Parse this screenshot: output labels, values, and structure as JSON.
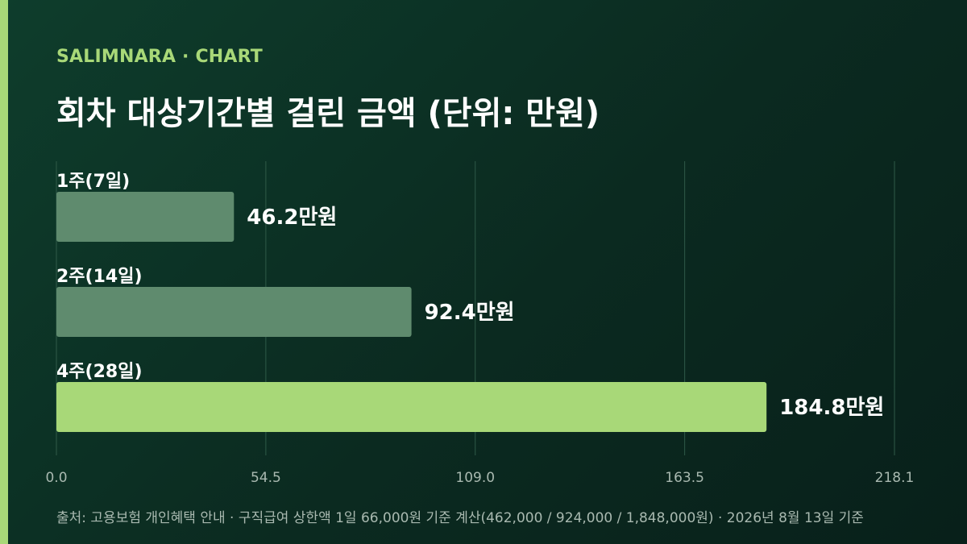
{
  "header": {
    "eyebrow": "SALIMNARA · CHART",
    "title": "회차 대상기간별 걸린 금액 (단위: 만원)"
  },
  "footer": {
    "source": "출처: 고용보험 개인혜택 안내 · 구직급여 상한액 1일 66,000원 기준 계산(462,000 / 924,000 / 1,848,000원) · 2026년 8월 13일 기준"
  },
  "colors": {
    "accent": "#a8d878",
    "bar_default": "#5f8b6e",
    "bar_highlight": "#a8d878",
    "grid": "#2f5a48",
    "tick_text": "#a9b9b0"
  },
  "chart_data": {
    "type": "bar",
    "orientation": "horizontal",
    "title": "회차 대상기간별 걸린 금액 (단위: 만원)",
    "categories": [
      "1주(7일)",
      "2주(14일)",
      "4주(28일)"
    ],
    "values": [
      46.2,
      92.4,
      184.8
    ],
    "value_labels": [
      "46.2만원",
      "92.4만원",
      "184.8만원"
    ],
    "highlight_index": 2,
    "xlim": [
      0,
      218.1
    ],
    "xticks": [
      "0.0",
      "54.5",
      "109.0",
      "163.5",
      "218.1"
    ],
    "xtick_values": [
      0,
      54.5,
      109.0,
      163.5,
      218.1
    ],
    "grid": true,
    "legend": false
  }
}
